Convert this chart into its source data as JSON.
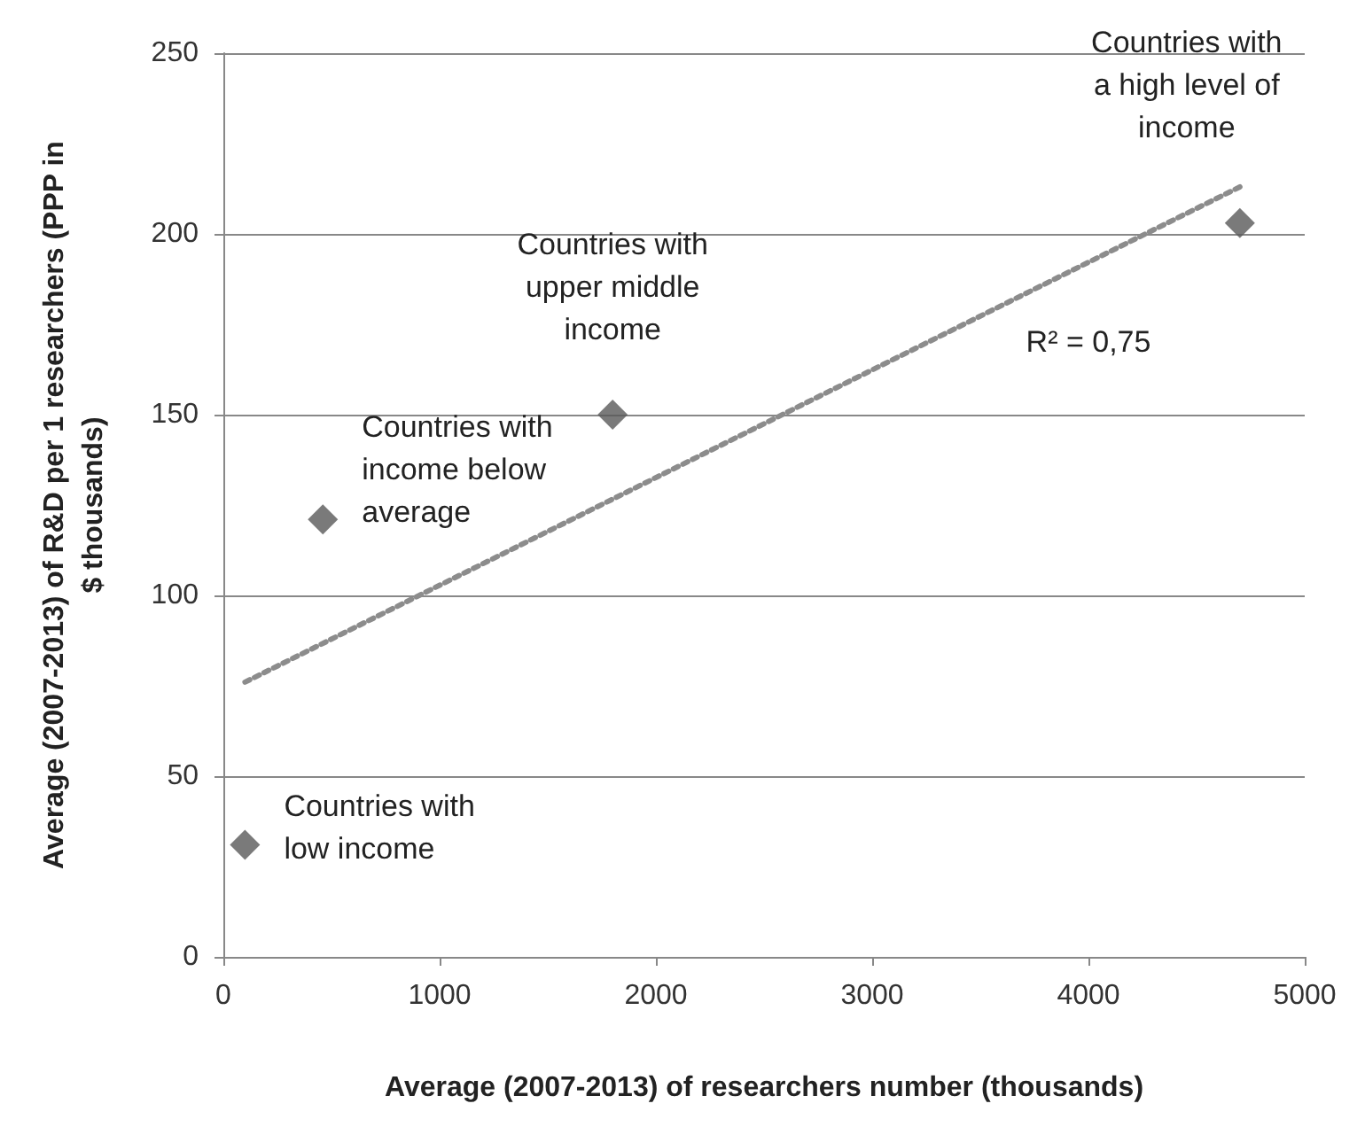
{
  "chart_data": {
    "type": "scatter",
    "xlabel": "Average (2007-2013) of researchers number (thousands)",
    "ylabel": "Average (2007-2013) of R&D per 1 researchers (PPP in\n$ thousands)",
    "marker": "diamond",
    "series": [
      {
        "x": [
          100,
          460,
          1800,
          4700
        ],
        "values": [
          31,
          121,
          150,
          203
        ],
        "color": "#595959"
      },
      {
        "type": "line",
        "x": [
          100,
          4700
        ],
        "values": [
          76,
          213
        ],
        "color": "#8c8c8c",
        "line_style": "dotted",
        "marker": "none"
      }
    ],
    "xlim": [
      0,
      5000
    ],
    "xticks": [
      0,
      1000,
      2000,
      3000,
      4000,
      5000
    ],
    "ylim": [
      0,
      250
    ],
    "yticks": [
      0,
      50,
      100,
      150,
      200,
      250
    ],
    "grid": "y",
    "annotations": [
      {
        "text": "Countries with\nlow income",
        "x": 100,
        "y": 31
      },
      {
        "text": "Countries with\nincome below\naverage",
        "x": 460,
        "y": 121
      },
      {
        "text": "Countries with\nupper middle\nincome",
        "x": 1800,
        "y": 150
      },
      {
        "text": "Countries with\na high level of\nincome",
        "x": 4700,
        "y": 203
      },
      "R² = 0,75"
    ]
  }
}
